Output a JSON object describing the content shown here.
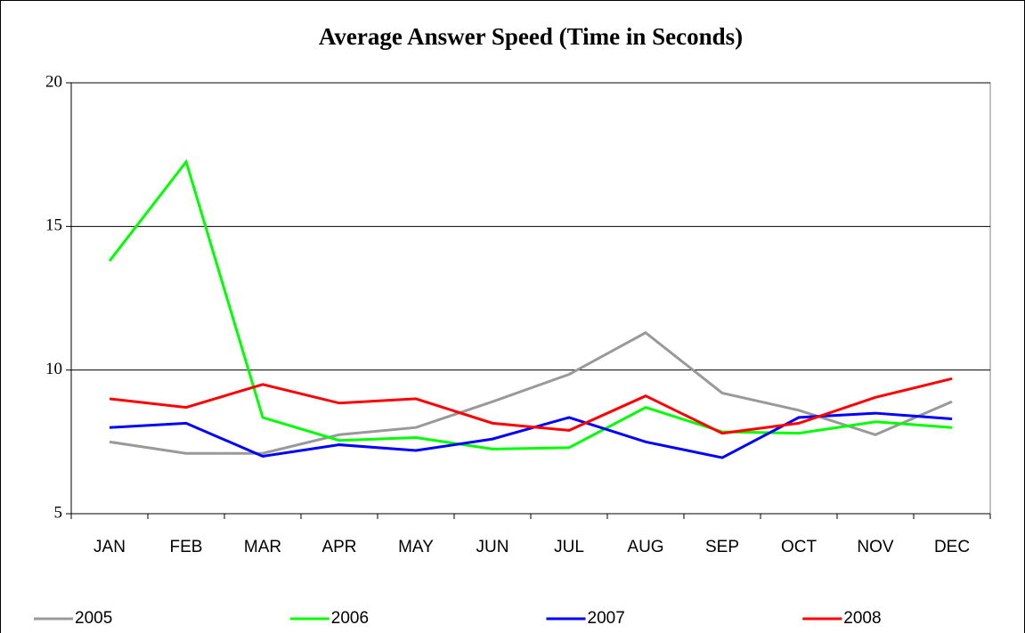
{
  "chart_data": {
    "type": "line",
    "title": "Average Answer Speed (Time in Seconds)",
    "categories": [
      "JAN",
      "FEB",
      "MAR",
      "APR",
      "MAY",
      "JUN",
      "JUL",
      "AUG",
      "SEP",
      "OCT",
      "NOV",
      "DEC"
    ],
    "series": [
      {
        "name": "2005",
        "color": "#999999",
        "values": [
          7.5,
          7.1,
          7.1,
          7.75,
          8.0,
          8.9,
          9.85,
          11.3,
          9.2,
          8.6,
          7.75,
          8.9
        ]
      },
      {
        "name": "2006",
        "color": "#00ff00",
        "values": [
          13.8,
          17.25,
          8.35,
          7.55,
          7.65,
          7.25,
          7.3,
          8.7,
          7.85,
          7.8,
          8.2,
          8.0
        ]
      },
      {
        "name": "2007",
        "color": "#0000ff",
        "values": [
          8.0,
          8.15,
          7.0,
          7.4,
          7.2,
          7.6,
          8.35,
          7.5,
          6.95,
          8.35,
          8.5,
          8.3
        ]
      },
      {
        "name": "2008",
        "color": "#ff0000",
        "values": [
          9.0,
          8.7,
          9.5,
          8.85,
          9.0,
          8.15,
          7.9,
          9.1,
          7.8,
          8.15,
          9.05,
          9.7
        ]
      }
    ],
    "ylim": [
      5,
      20
    ],
    "yticks": [
      5,
      10,
      15,
      20
    ],
    "grid": true,
    "legend": "bottom"
  }
}
